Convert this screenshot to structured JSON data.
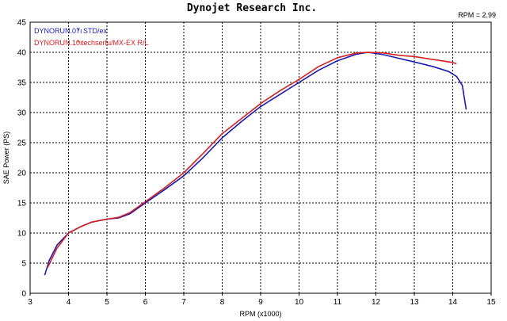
{
  "chart_data": {
    "type": "line",
    "title": "Dynojet  Research  Inc.",
    "corner_note": "RPM = 2.99",
    "xlabel": "RPM (x1000)",
    "ylabel": "SAE Power (PS)",
    "xlim": [
      3,
      15
    ],
    "ylim": [
      0,
      45
    ],
    "x_ticks": [
      "3",
      "4",
      "5",
      "6",
      "7",
      "8",
      "9",
      "10",
      "11",
      "12",
      "13",
      "14",
      "15"
    ],
    "y_ticks": [
      "0",
      "5",
      "10",
      "15",
      "20",
      "25",
      "30",
      "35",
      "40",
      "45"
    ],
    "grid": true,
    "legend_position": "top-left",
    "series": [
      {
        "run": "DYNORUN.07ı",
        "name": "STD/ex",
        "color": "#1a1ab4",
        "points": [
          [
            3.38,
            3.0
          ],
          [
            3.5,
            5.5
          ],
          [
            3.7,
            8.0
          ],
          [
            4.0,
            10.0
          ],
          [
            4.3,
            11.0
          ],
          [
            4.6,
            11.8
          ],
          [
            5.0,
            12.3
          ],
          [
            5.3,
            12.5
          ],
          [
            5.6,
            13.2
          ],
          [
            6.0,
            15.0
          ],
          [
            6.5,
            17.2
          ],
          [
            7.0,
            19.5
          ],
          [
            7.5,
            22.5
          ],
          [
            8.0,
            25.8
          ],
          [
            8.5,
            28.5
          ],
          [
            9.0,
            31.0
          ],
          [
            9.5,
            33.0
          ],
          [
            10.0,
            35.0
          ],
          [
            10.5,
            37.0
          ],
          [
            11.0,
            38.6
          ],
          [
            11.5,
            39.7
          ],
          [
            11.8,
            40.0
          ],
          [
            12.2,
            39.6
          ],
          [
            12.6,
            39.0
          ],
          [
            13.0,
            38.4
          ],
          [
            13.5,
            37.6
          ],
          [
            13.9,
            36.8
          ],
          [
            14.1,
            36.0
          ],
          [
            14.25,
            34.5
          ],
          [
            14.35,
            30.5
          ]
        ]
      },
      {
        "run": "DYNORUN.10ı",
        "name": "techserfu/MX-EX R/L",
        "color": "#d42020",
        "points": [
          [
            3.45,
            4.2
          ],
          [
            3.7,
            7.5
          ],
          [
            4.0,
            10.0
          ],
          [
            4.3,
            11.0
          ],
          [
            4.6,
            11.8
          ],
          [
            5.0,
            12.3
          ],
          [
            5.3,
            12.6
          ],
          [
            5.6,
            13.4
          ],
          [
            6.0,
            15.2
          ],
          [
            6.5,
            17.5
          ],
          [
            7.0,
            20.0
          ],
          [
            7.5,
            23.2
          ],
          [
            8.0,
            26.5
          ],
          [
            8.5,
            29.0
          ],
          [
            9.0,
            31.5
          ],
          [
            9.5,
            33.6
          ],
          [
            10.0,
            35.5
          ],
          [
            10.5,
            37.6
          ],
          [
            11.0,
            39.1
          ],
          [
            11.5,
            39.9
          ],
          [
            11.8,
            40.0
          ],
          [
            12.2,
            39.9
          ],
          [
            12.6,
            39.5
          ],
          [
            13.0,
            39.3
          ],
          [
            13.4,
            38.9
          ],
          [
            13.7,
            38.6
          ],
          [
            14.0,
            38.3
          ],
          [
            14.1,
            38.1
          ]
        ]
      }
    ]
  }
}
